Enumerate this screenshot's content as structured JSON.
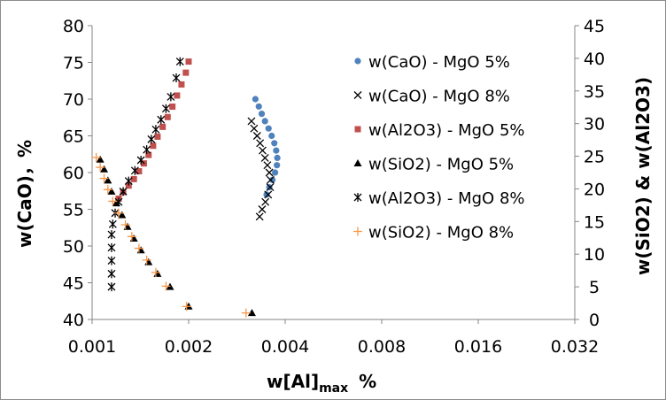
{
  "chart_data": {
    "type": "scatter",
    "x_scale": "log2",
    "xlim": [
      0.001,
      0.032
    ],
    "ylim": [
      40,
      80
    ],
    "y2lim": [
      0,
      45
    ],
    "x_ticks": [
      "0.001",
      "0.002",
      "0.004",
      "0.008",
      "0.016",
      "0.032"
    ],
    "y_ticks": [
      "40",
      "45",
      "50",
      "55",
      "60",
      "65",
      "70",
      "75",
      "80"
    ],
    "y2_ticks": [
      "0",
      "5",
      "10",
      "15",
      "20",
      "25",
      "30",
      "35",
      "40",
      "45"
    ],
    "xlabel": "w[Al]",
    "xlabel_sub": "max",
    "xlabel_unit": "%",
    "ylabel": "w(CaO)，%",
    "y2label": "w(SiO2) & w(Al2O3)",
    "grid": false,
    "legend_position": "right",
    "series": [
      {
        "name": "w(CaO) - MgO 5%",
        "axis": "left",
        "marker": "circle",
        "color": "#4f81bd",
        "x": [
          0.00323,
          0.00331,
          0.00338,
          0.00346,
          0.00355,
          0.00363,
          0.0037,
          0.00375,
          0.00378,
          0.00377,
          0.00372,
          0.00365,
          0.00357,
          0.0035
        ],
        "y": [
          70.0,
          69.0,
          68.0,
          67.0,
          66.0,
          65.0,
          64.0,
          63.0,
          62.0,
          61.0,
          60.0,
          59.0,
          58.0,
          57.0
        ]
      },
      {
        "name": "w(CaO) - MgO 8%",
        "axis": "left",
        "marker": "x",
        "color": "#000000",
        "x": [
          0.00314,
          0.0032,
          0.00327,
          0.00334,
          0.0034,
          0.00346,
          0.00352,
          0.00357,
          0.0036,
          0.00359,
          0.00354,
          0.00347,
          0.00339,
          0.00333
        ],
        "y": [
          67.0,
          66.0,
          65.0,
          64.0,
          63.0,
          62.0,
          61.0,
          60.0,
          59.0,
          58.0,
          57.0,
          56.0,
          55.0,
          54.0
        ]
      },
      {
        "name": "w(Al2O3) - MgO 5%",
        "axis": "right",
        "marker": "square",
        "color": "#c0504d",
        "x": [
          0.00121,
          0.00125,
          0.0013,
          0.00135,
          0.0014,
          0.00145,
          0.0015,
          0.00155,
          0.0016,
          0.00166,
          0.00172,
          0.00178,
          0.00184,
          0.0019,
          0.00196,
          0.002
        ],
        "y": [
          18.5,
          19.5,
          20.5,
          21.5,
          22.7,
          23.9,
          25.2,
          26.6,
          28.0,
          29.5,
          31.0,
          32.6,
          34.3,
          36.0,
          37.8,
          39.5
        ]
      },
      {
        "name": "w(SiO2) - MgO 5%",
        "axis": "right",
        "marker": "triangle",
        "color": "#000000",
        "x": [
          0.00106,
          0.00109,
          0.00112,
          0.00115,
          0.00119,
          0.00124,
          0.00129,
          0.00135,
          0.00142,
          0.0015,
          0.0016,
          0.00175,
          0.002,
          0.00315
        ],
        "y": [
          24.5,
          23.0,
          21.3,
          19.6,
          17.8,
          16.0,
          14.2,
          12.4,
          10.6,
          8.8,
          7.0,
          5.0,
          2.0,
          1.0
        ]
      },
      {
        "name": "w(Al2O3) - MgO 8%",
        "axis": "right",
        "marker": "asterisk",
        "color": "#000000",
        "x": [
          0.00115,
          0.00115,
          0.00115,
          0.00115,
          0.00115,
          0.00116,
          0.00118,
          0.00121,
          0.00125,
          0.0013,
          0.00136,
          0.00142,
          0.00148,
          0.00153,
          0.00158,
          0.00164,
          0.0017,
          0.00176,
          0.00183,
          0.00188
        ],
        "y": [
          5.0,
          7.0,
          9.0,
          11.0,
          13.0,
          14.6,
          16.3,
          18.0,
          19.6,
          21.2,
          22.8,
          24.4,
          26.0,
          27.6,
          29.1,
          30.6,
          32.3,
          34.1,
          37.0,
          39.5
        ]
      },
      {
        "name": "w(SiO2) - MgO 8%",
        "axis": "right",
        "marker": "plus",
        "color": "#f79646",
        "x": [
          0.00103,
          0.00106,
          0.00109,
          0.00112,
          0.00116,
          0.00121,
          0.00127,
          0.00133,
          0.0014,
          0.00148,
          0.00158,
          0.0017,
          0.00197,
          0.00302
        ],
        "y": [
          24.8,
          23.3,
          21.6,
          19.9,
          18.1,
          16.3,
          14.5,
          12.7,
          10.9,
          9.1,
          7.2,
          5.1,
          2.0,
          1.0
        ]
      }
    ]
  }
}
